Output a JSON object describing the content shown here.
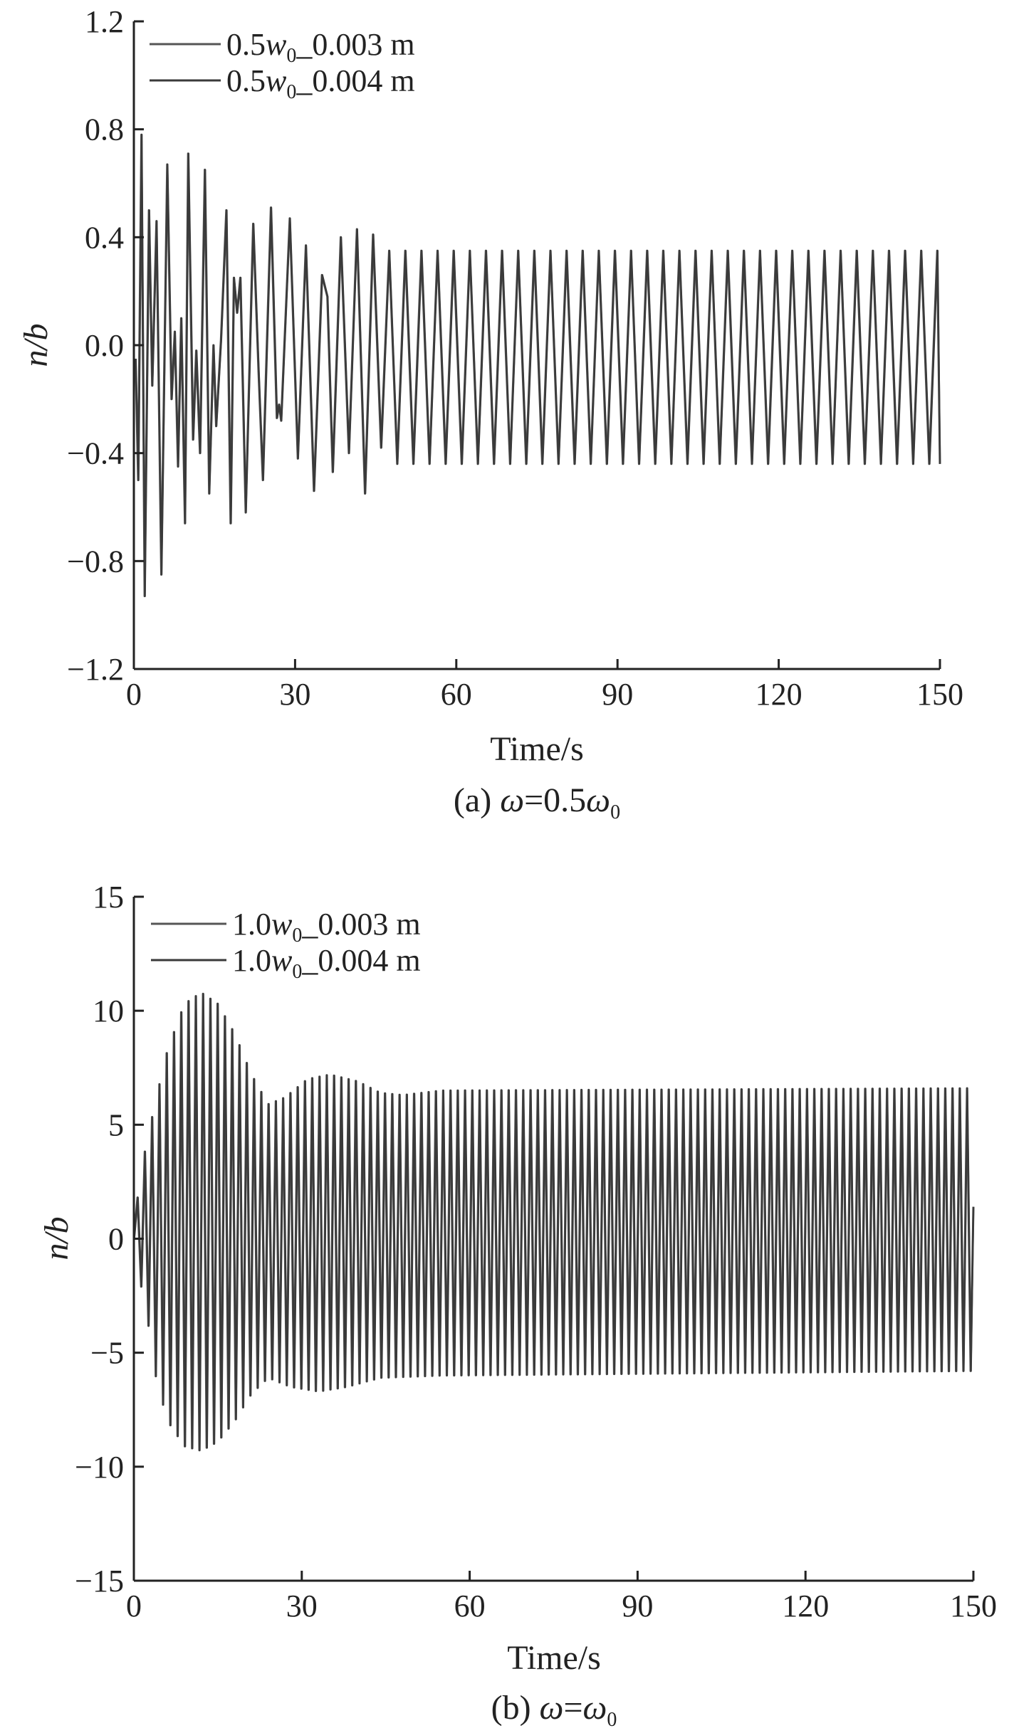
{
  "chart_data": [
    {
      "type": "line",
      "panel": "(a)",
      "caption": "(a) ω=0.5ω0",
      "caption_parts": {
        "prefix": "(a) ",
        "sym": "ω",
        "mid": "=0.5",
        "sym2": "ω",
        "sub": "0"
      },
      "xlabel": "Time/s",
      "ylabel": "n/b",
      "xlim": [
        0,
        150
      ],
      "ylim": [
        -1.2,
        1.2
      ],
      "xticks": [
        0,
        30,
        60,
        90,
        120,
        150
      ],
      "yticks": [
        -1.2,
        -0.8,
        -0.4,
        0.0,
        0.4,
        0.8,
        1.2
      ],
      "ytick_labels": [
        "−1.2",
        "−0.8",
        "−0.4",
        "0.0",
        "0.4",
        "0.8",
        "1.2"
      ],
      "grid": false,
      "legend_placement": "top-left",
      "series": [
        {
          "name": "0.5w0_0.003 m",
          "name_parts": {
            "coef": "0.5",
            "sym": "w",
            "sub": "0",
            "rest": "_0.003 m"
          },
          "color": "#555555"
        },
        {
          "name": "0.5w0_0.004 m",
          "name_parts": {
            "coef": "0.5",
            "sym": "w",
            "sub": "0",
            "rest": "_0.004 m"
          },
          "color": "#3a3a3a"
        }
      ],
      "signal": {
        "period": 3.0,
        "steady_max": 0.35,
        "steady_min": -0.44,
        "extrema": [
          {
            "t": 0.3,
            "v": -0.05
          },
          {
            "t": 0.8,
            "v": -0.5
          },
          {
            "t": 1.4,
            "v": 0.78
          },
          {
            "t": 2.0,
            "v": -0.93
          },
          {
            "t": 2.8,
            "v": 0.5
          },
          {
            "t": 3.4,
            "v": -0.15
          },
          {
            "t": 4.2,
            "v": 0.46
          },
          {
            "t": 5.1,
            "v": -0.85
          },
          {
            "t": 6.2,
            "v": 0.67
          },
          {
            "t": 7.0,
            "v": -0.2
          },
          {
            "t": 7.6,
            "v": 0.05
          },
          {
            "t": 8.2,
            "v": -0.45
          },
          {
            "t": 8.8,
            "v": 0.1
          },
          {
            "t": 9.5,
            "v": -0.66
          },
          {
            "t": 10.1,
            "v": 0.71
          },
          {
            "t": 11.0,
            "v": -0.35
          },
          {
            "t": 11.6,
            "v": -0.02
          },
          {
            "t": 12.3,
            "v": -0.4
          },
          {
            "t": 13.2,
            "v": 0.65
          },
          {
            "t": 14.0,
            "v": -0.55
          },
          {
            "t": 14.8,
            "v": 0.0
          },
          {
            "t": 15.3,
            "v": -0.3
          },
          {
            "t": 16.2,
            "v": 0.02
          },
          {
            "t": 17.2,
            "v": 0.5
          },
          {
            "t": 18.0,
            "v": -0.66
          },
          {
            "t": 18.6,
            "v": 0.25
          },
          {
            "t": 19.2,
            "v": 0.12
          },
          {
            "t": 19.8,
            "v": 0.25
          },
          {
            "t": 20.8,
            "v": -0.62
          },
          {
            "t": 22.2,
            "v": 0.45
          },
          {
            "t": 23.2,
            "v": -0.1
          },
          {
            "t": 24.0,
            "v": -0.5
          },
          {
            "t": 25.5,
            "v": 0.51
          },
          {
            "t": 26.6,
            "v": -0.27
          },
          {
            "t": 27.0,
            "v": -0.22
          },
          {
            "t": 27.4,
            "v": -0.28
          },
          {
            "t": 29.0,
            "v": 0.47
          },
          {
            "t": 30.5,
            "v": -0.42
          },
          {
            "t": 32.0,
            "v": 0.37
          },
          {
            "t": 33.5,
            "v": -0.54
          },
          {
            "t": 35.0,
            "v": 0.26
          },
          {
            "t": 36.0,
            "v": 0.18
          },
          {
            "t": 37.0,
            "v": -0.47
          },
          {
            "t": 38.5,
            "v": 0.4
          },
          {
            "t": 40.0,
            "v": -0.4
          },
          {
            "t": 41.5,
            "v": 0.43
          },
          {
            "t": 43.0,
            "v": -0.55
          },
          {
            "t": 44.5,
            "v": 0.41
          },
          {
            "t": 46.0,
            "v": -0.38
          },
          {
            "t": 47.5,
            "v": 0.35
          }
        ],
        "end_t": 150.0
      }
    },
    {
      "type": "line",
      "panel": "(b)",
      "caption": "(b) ω=ω0",
      "caption_parts": {
        "prefix": "(b) ",
        "sym": "ω",
        "mid": "=",
        "sym2": "ω",
        "sub": "0"
      },
      "xlabel": "Time/s",
      "ylabel": "n/b",
      "xlim": [
        0,
        150
      ],
      "ylim": [
        -15,
        15
      ],
      "xticks": [
        0,
        30,
        60,
        90,
        120,
        150
      ],
      "yticks": [
        -15,
        -10,
        -5,
        0,
        5,
        10,
        15
      ],
      "ytick_labels": [
        "−15",
        "−10",
        "−5",
        "0",
        "5",
        "10",
        "15"
      ],
      "grid": false,
      "legend_placement": "top-left",
      "series": [
        {
          "name": "1.0w0_0.003 m",
          "name_parts": {
            "coef": "1.0",
            "sym": "w",
            "sub": "0",
            "rest": "_0.003 m"
          },
          "color": "#555555"
        },
        {
          "name": "1.0w0_0.004 m",
          "name_parts": {
            "coef": "1.0",
            "sym": "w",
            "sub": "0",
            "rest": "_0.004 m"
          },
          "color": "#3a3a3a"
        }
      ],
      "signal": {
        "period": 1.3,
        "envelope_max": [
          {
            "t": 0,
            "v": 0.8
          },
          {
            "t": 2,
            "v": 3.9
          },
          {
            "t": 4,
            "v": 6.2
          },
          {
            "t": 6,
            "v": 8.3
          },
          {
            "t": 9,
            "v": 10.3
          },
          {
            "t": 12,
            "v": 10.8
          },
          {
            "t": 15,
            "v": 10.3
          },
          {
            "t": 18,
            "v": 9.0
          },
          {
            "t": 21,
            "v": 7.2
          },
          {
            "t": 24,
            "v": 5.9
          },
          {
            "t": 27,
            "v": 6.2
          },
          {
            "t": 31,
            "v": 7.0
          },
          {
            "t": 35,
            "v": 7.2
          },
          {
            "t": 40,
            "v": 6.9
          },
          {
            "t": 44,
            "v": 6.4
          },
          {
            "t": 48,
            "v": 6.3
          },
          {
            "t": 55,
            "v": 6.5
          },
          {
            "t": 150,
            "v": 6.6
          }
        ],
        "envelope_min": [
          {
            "t": 0,
            "v": -0.8
          },
          {
            "t": 2,
            "v": -2.8
          },
          {
            "t": 4,
            "v": -6.2
          },
          {
            "t": 6,
            "v": -8.0
          },
          {
            "t": 9,
            "v": -9.1
          },
          {
            "t": 12,
            "v": -9.3
          },
          {
            "t": 15,
            "v": -8.9
          },
          {
            "t": 18,
            "v": -8.0
          },
          {
            "t": 21,
            "v": -6.8
          },
          {
            "t": 24,
            "v": -6.1
          },
          {
            "t": 28,
            "v": -6.5
          },
          {
            "t": 33,
            "v": -6.7
          },
          {
            "t": 38,
            "v": -6.5
          },
          {
            "t": 44,
            "v": -6.1
          },
          {
            "t": 55,
            "v": -6.0
          },
          {
            "t": 150,
            "v": -5.8
          }
        ],
        "end_t": 150.0,
        "end_v": 1.4
      }
    }
  ]
}
